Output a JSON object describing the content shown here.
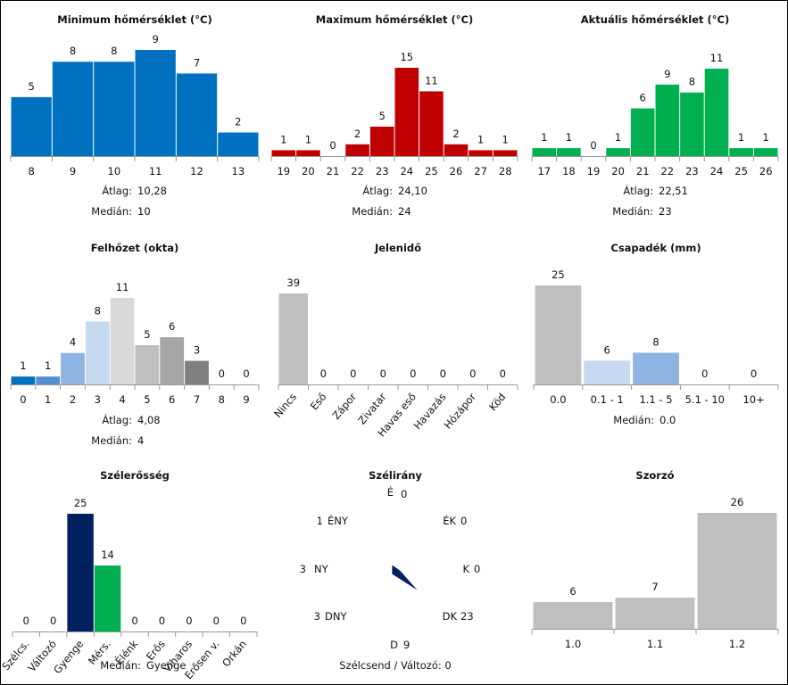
{
  "colors": {
    "blue": "#0070C0",
    "red": "#C00000",
    "green": "#00B050",
    "grey": "#BFBFBF",
    "navy": "#002060",
    "cloud": [
      "#0070C0",
      "#558ED5",
      "#8EB4E3",
      "#C6D9F1",
      "#D9D9D9",
      "#BFBFBF",
      "#A6A6A6",
      "#808080",
      "#595959",
      "#404040"
    ],
    "precip": [
      "#BFBFBF",
      "#C6D9F1",
      "#8EB4E3",
      "#BFBFBF",
      "#BFBFBF"
    ],
    "wind": [
      "#BFBFBF",
      "#BFBFBF",
      "#002060",
      "#00B050",
      "#BFBFBF",
      "#BFBFBF",
      "#BFBFBF",
      "#BFBFBF",
      "#BFBFBF"
    ]
  },
  "chart_data": [
    {
      "id": "min",
      "type": "bar",
      "title": "Minimum hőmérséklet (°C)",
      "categories": [
        "8",
        "9",
        "10",
        "11",
        "12",
        "13"
      ],
      "values": [
        5,
        8,
        8,
        9,
        7,
        2
      ],
      "ylim": [
        0,
        9
      ],
      "stats": [
        {
          "label": "Átlag:",
          "value": "10,28"
        },
        {
          "label": "Medián:",
          "value": "10"
        }
      ]
    },
    {
      "id": "max",
      "type": "bar",
      "title": "Maximum hőmérséklet (°C)",
      "categories": [
        "19",
        "20",
        "21",
        "22",
        "23",
        "24",
        "25",
        "26",
        "27",
        "28"
      ],
      "values": [
        1,
        1,
        0,
        2,
        5,
        15,
        11,
        2,
        1,
        1
      ],
      "ylim": [
        0,
        15
      ],
      "stats": [
        {
          "label": "Átlag:",
          "value": "24,10"
        },
        {
          "label": "Medián:",
          "value": "24"
        }
      ]
    },
    {
      "id": "act",
      "type": "bar",
      "title": "Aktuális hőmérséklet (°C)",
      "categories": [
        "17",
        "18",
        "19",
        "20",
        "21",
        "22",
        "23",
        "24",
        "25",
        "26"
      ],
      "values": [
        1,
        1,
        0,
        1,
        6,
        9,
        8,
        11,
        1,
        1
      ],
      "ylim": [
        0,
        11
      ],
      "stats": [
        {
          "label": "Átlag:",
          "value": "22,51"
        },
        {
          "label": "Medián:",
          "value": "23"
        }
      ]
    },
    {
      "id": "cloud",
      "type": "bar",
      "title": "Felhőzet (okta)",
      "categories": [
        "0",
        "1",
        "2",
        "3",
        "4",
        "5",
        "6",
        "7",
        "8",
        "9"
      ],
      "values": [
        1,
        1,
        4,
        8,
        11,
        5,
        6,
        3,
        0,
        0
      ],
      "ylim": [
        0,
        11
      ],
      "stats": [
        {
          "label": "Átlag:",
          "value": "4,08"
        },
        {
          "label": "Medián:",
          "value": "4"
        }
      ]
    },
    {
      "id": "weather",
      "type": "bar",
      "title": "Jelenidő",
      "categories": [
        "Nincs",
        "Eső",
        "Zápor",
        "Zivatar",
        "Havas eső",
        "Havazás",
        "Hózápor",
        "Köd"
      ],
      "values": [
        39,
        0,
        0,
        0,
        0,
        0,
        0,
        0
      ],
      "ylim": [
        0,
        39
      ],
      "stats": []
    },
    {
      "id": "precip",
      "type": "bar",
      "title": "Csapadék (mm)",
      "categories": [
        "0.0",
        "0.1 - 1",
        "1.1 - 5",
        "5.1 - 10",
        "10+"
      ],
      "values": [
        25,
        6,
        8,
        0,
        0
      ],
      "ylim": [
        0,
        25
      ],
      "stats": [
        {
          "label": "Medián:",
          "value": "0.0"
        }
      ]
    },
    {
      "id": "wind",
      "type": "bar",
      "title": "Szélerősség",
      "categories": [
        "Szélcs.",
        "Változó",
        "Gyenge",
        "Mérs.",
        "Élénk",
        "Erős",
        "Viharos",
        "Erősen v.",
        "Orkán"
      ],
      "values": [
        0,
        0,
        25,
        14,
        0,
        0,
        0,
        0,
        0
      ],
      "ylim": [
        0,
        25
      ],
      "stats": [
        {
          "label": "Medián:",
          "value": "Gyenge"
        }
      ]
    },
    {
      "id": "dir",
      "type": "rose",
      "title": "Szélirány",
      "directions": [
        {
          "label": "É",
          "value": 0
        },
        {
          "label": "ÉK",
          "value": 0
        },
        {
          "label": "K",
          "value": 0
        },
        {
          "label": "DK",
          "value": 23
        },
        {
          "label": "D",
          "value": 9
        },
        {
          "label": "DNY",
          "value": 3
        },
        {
          "label": "NY",
          "value": 3
        },
        {
          "label": "ÉNY",
          "value": 1
        }
      ],
      "footer": "Szélcsend / Változó: 0"
    },
    {
      "id": "mult",
      "type": "bar",
      "title": "Szorzó",
      "categories": [
        "1.0",
        "1.1",
        "1.2"
      ],
      "values": [
        6,
        7,
        26
      ],
      "ylim": [
        0,
        26
      ],
      "stats": []
    }
  ]
}
